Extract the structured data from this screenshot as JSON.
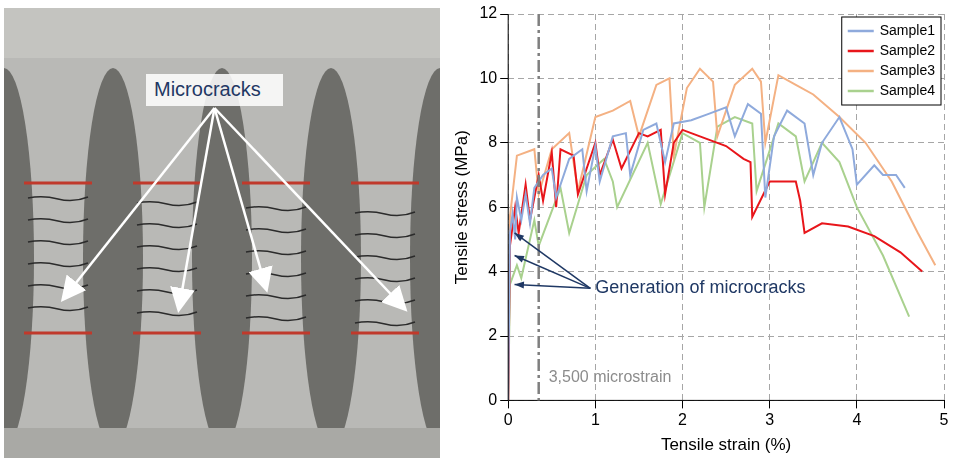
{
  "photo": {
    "annotation": "Microcracks"
  },
  "chart_data": {
    "type": "line",
    "x_label": "Tensile strain (%)",
    "y_label": "Tensile stress (MPa)",
    "xlim": [
      0,
      5
    ],
    "xticks": [
      0,
      1,
      2,
      3,
      4,
      5
    ],
    "ylim": [
      0,
      12
    ],
    "yticks": [
      0,
      2,
      4,
      6,
      8,
      10,
      12
    ],
    "grid": true,
    "legend": "upper right",
    "series": [
      {
        "name": "Sample1",
        "color": "#8faadc",
        "line_style": "solid",
        "x": [
          0,
          0.02,
          0.05,
          0.08,
          0.1,
          0.15,
          0.2,
          0.25,
          0.3,
          0.4,
          0.5,
          0.55,
          0.7,
          0.85,
          0.9,
          1.0,
          1.05,
          1.2,
          1.35,
          1.4,
          1.55,
          1.7,
          1.8,
          1.9,
          2.1,
          2.3,
          2.5,
          2.6,
          2.75,
          2.9,
          2.95,
          3.05,
          3.2,
          3.4,
          3.5,
          3.6,
          3.8,
          3.95,
          4.0,
          4.2,
          4.3,
          4.45,
          4.55
        ],
        "values": [
          0,
          5.2,
          5.8,
          5.0,
          6.3,
          5.6,
          6.4,
          5.5,
          6.6,
          7.0,
          7.2,
          6.3,
          7.5,
          7.8,
          6.5,
          7.9,
          6.8,
          8.2,
          8.3,
          7.0,
          8.4,
          8.6,
          7.4,
          8.6,
          8.7,
          8.9,
          9.1,
          8.2,
          9.2,
          8.9,
          6.3,
          8.2,
          9.0,
          8.6,
          7.0,
          8.0,
          8.8,
          7.8,
          6.7,
          7.3,
          7.0,
          7.0,
          6.6
        ]
      },
      {
        "name": "Sample2",
        "color": "#e8161b",
        "line_style": "solid",
        "x": [
          0,
          0.02,
          0.08,
          0.12,
          0.2,
          0.25,
          0.35,
          0.4,
          0.5,
          0.55,
          0.6,
          0.75,
          0.8,
          1.0,
          1.05,
          1.2,
          1.3,
          1.5,
          1.6,
          1.75,
          1.8,
          1.9,
          2.0,
          2.3,
          2.5,
          2.7,
          2.78,
          2.8,
          3.0,
          3.3,
          3.35,
          3.4,
          3.6,
          3.9,
          4.2,
          4.5,
          4.75
        ],
        "values": [
          0,
          4.8,
          6.0,
          5.2,
          6.7,
          5.6,
          7.0,
          6.2,
          7.7,
          6.0,
          7.8,
          7.6,
          6.4,
          8.0,
          7.0,
          8.1,
          7.2,
          8.3,
          8.2,
          8.4,
          6.4,
          8.0,
          8.4,
          8.1,
          7.9,
          7.5,
          7.4,
          5.7,
          6.8,
          6.8,
          6.2,
          5.2,
          5.5,
          5.4,
          5.1,
          4.6,
          4.0
        ]
      },
      {
        "name": "Sample3",
        "color": "#f4b183",
        "line_style": "solid",
        "x": [
          0,
          0.02,
          0.1,
          0.3,
          0.35,
          0.5,
          0.7,
          0.8,
          1.0,
          1.2,
          1.4,
          1.5,
          1.7,
          1.85,
          1.9,
          2.05,
          2.2,
          2.35,
          2.4,
          2.6,
          2.8,
          2.9,
          2.95,
          3.1,
          3.3,
          3.5,
          3.8,
          4.1,
          4.4,
          4.7,
          4.9
        ],
        "values": [
          0,
          5.7,
          7.6,
          7.8,
          6.4,
          7.8,
          8.3,
          6.5,
          8.8,
          9.0,
          9.3,
          8.2,
          9.8,
          10.0,
          7.6,
          9.7,
          10.3,
          9.9,
          8.2,
          9.8,
          10.3,
          9.9,
          8.0,
          10.1,
          9.8,
          9.5,
          8.8,
          8.0,
          6.8,
          5.2,
          4.2
        ]
      },
      {
        "name": "Sample4",
        "color": "#a9d18e",
        "line_style": "solid",
        "x": [
          0,
          0.02,
          0.1,
          0.15,
          0.3,
          0.35,
          0.6,
          0.7,
          0.9,
          1.1,
          1.2,
          1.25,
          1.6,
          1.75,
          2.0,
          2.2,
          2.25,
          2.4,
          2.6,
          2.8,
          2.85,
          3.1,
          3.3,
          3.4,
          3.6,
          3.8,
          4.0,
          4.3,
          4.6
        ],
        "values": [
          0,
          3.6,
          4.2,
          3.8,
          5.6,
          4.8,
          6.6,
          5.2,
          7.0,
          7.5,
          6.8,
          6.0,
          8.0,
          6.1,
          8.3,
          8.0,
          6.0,
          8.5,
          8.8,
          8.6,
          6.5,
          8.6,
          8.2,
          6.8,
          8.0,
          7.4,
          6.0,
          4.5,
          2.6
        ]
      }
    ],
    "reference_line": {
      "x": 0.35,
      "label": "3,500 microstrain"
    },
    "annotations": [
      {
        "text": "Generation of microcracks",
        "points": [
          {
            "x": 0.05,
            "y": 5.2
          },
          {
            "x": 0.05,
            "y": 4.5
          },
          {
            "x": 0.05,
            "y": 3.6
          }
        ]
      }
    ]
  }
}
